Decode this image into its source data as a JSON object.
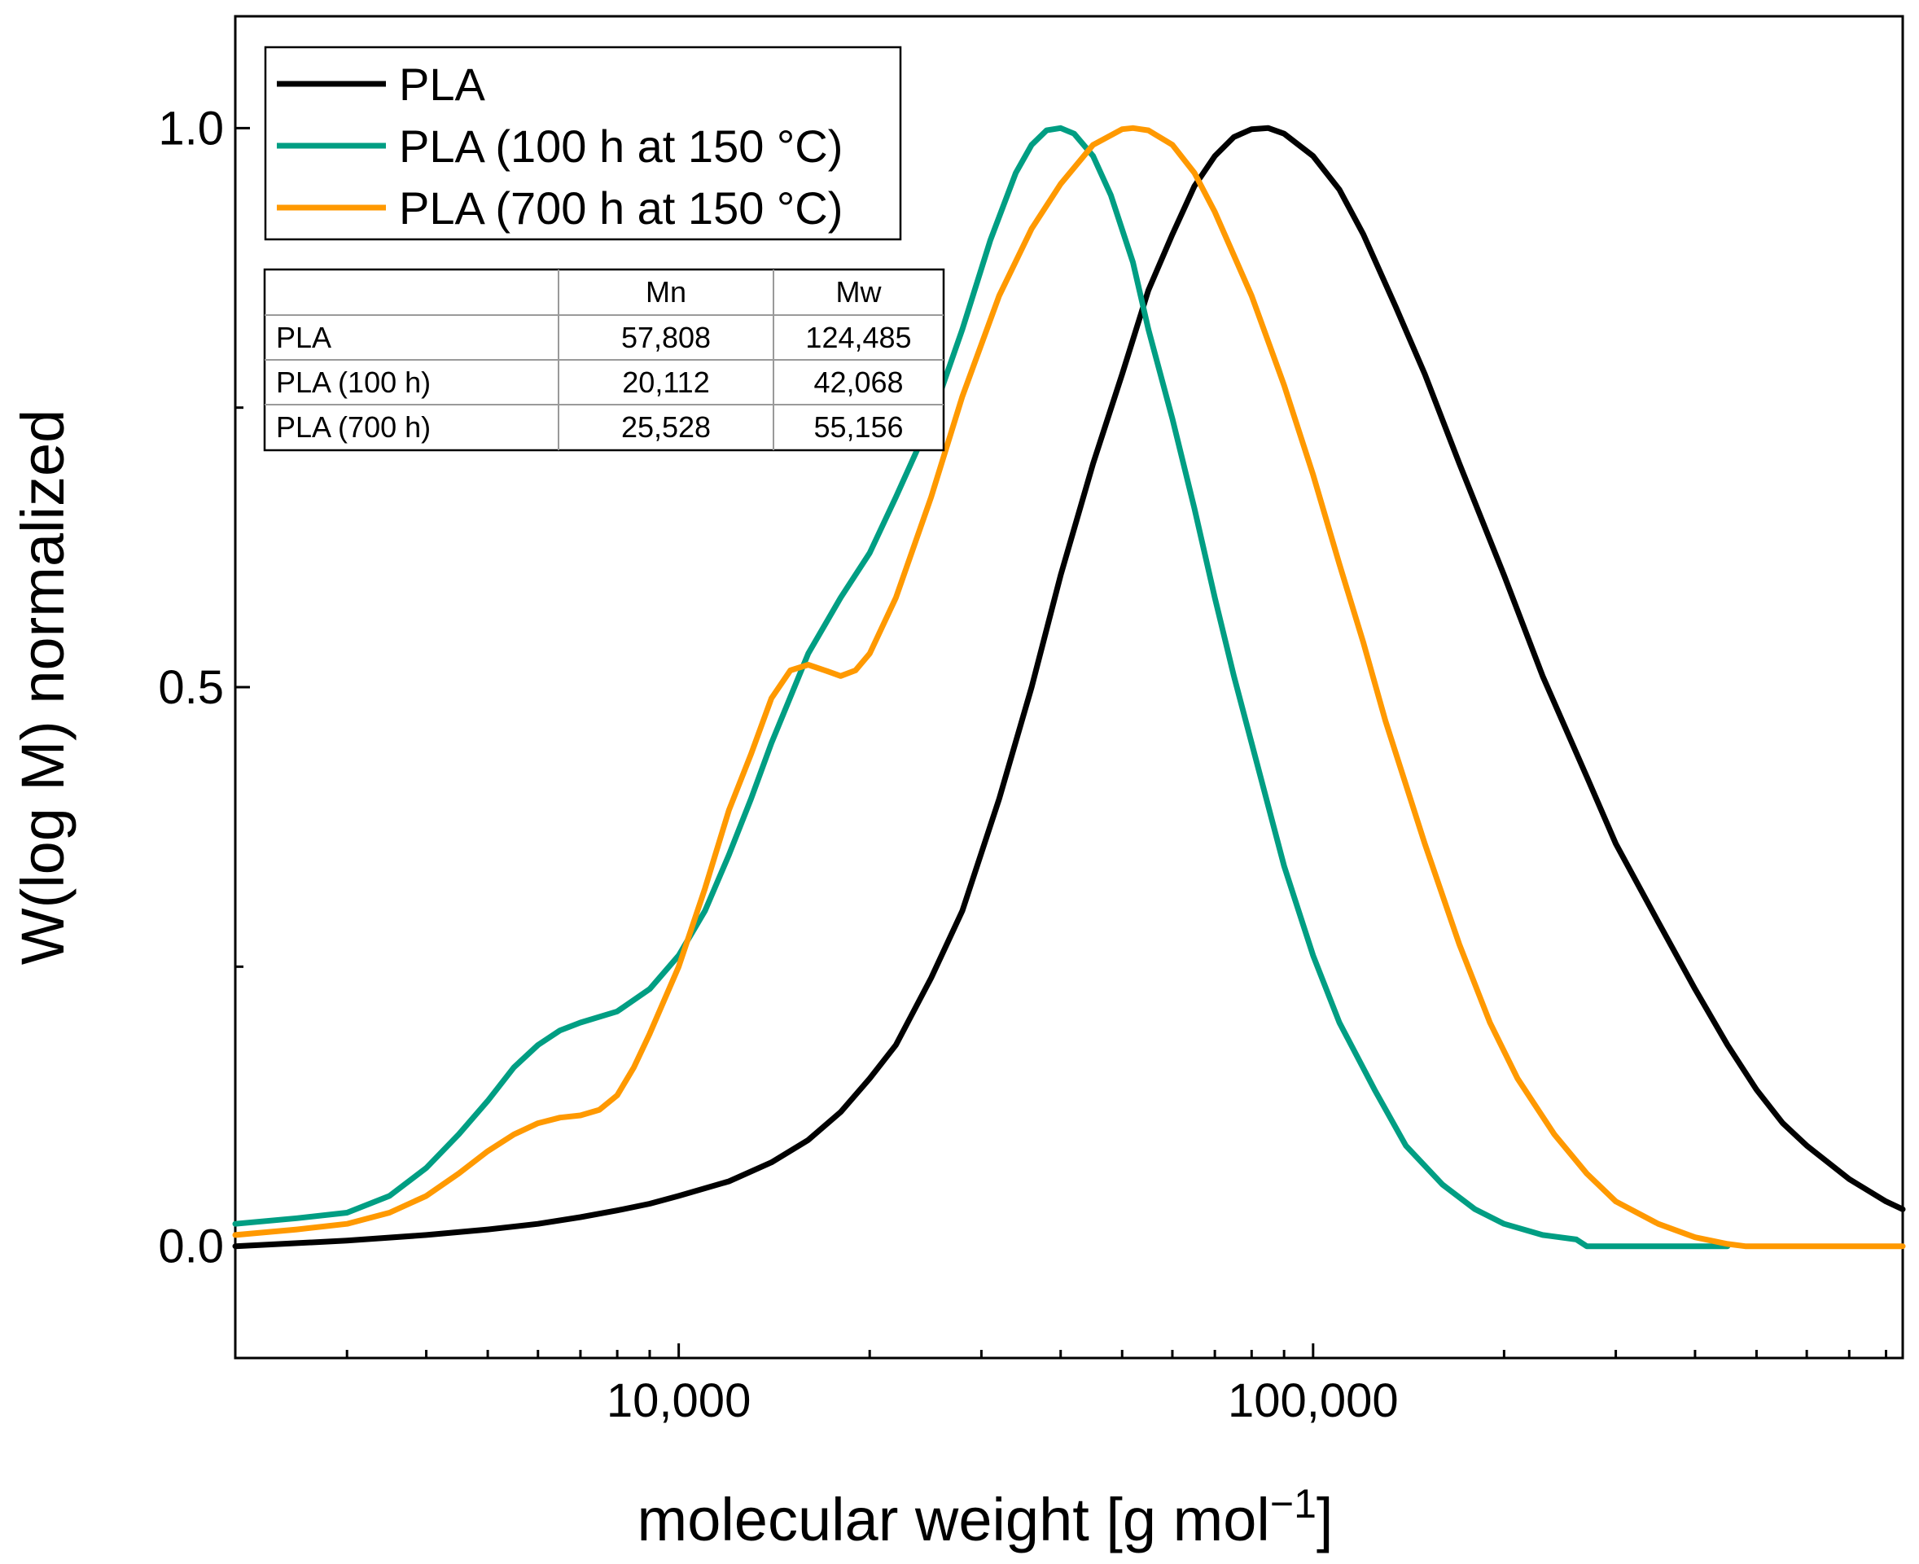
{
  "chart_data": {
    "type": "line",
    "title": "",
    "xlabel": "molecular weight [g mol",
    "xlabel_sup": "−1",
    "xlabel_close": "]",
    "ylabel": "W(log M) normalized",
    "xscale": "log",
    "xlim": [
      2000,
      850000
    ],
    "ylim": [
      -0.1,
      1.1
    ],
    "grid": false,
    "x_ticks": [
      {
        "value": 10000,
        "label": "10,000"
      },
      {
        "value": 100000,
        "label": "100,000"
      }
    ],
    "y_ticks": [
      {
        "value": 0.0,
        "label": "0.0"
      },
      {
        "value": 0.5,
        "label": "0.5"
      },
      {
        "value": 1.0,
        "label": "1.0"
      }
    ],
    "legend_position": "top-left",
    "series": [
      {
        "name": "PLA",
        "color": "#000000",
        "points": [
          [
            2000,
            0.0
          ],
          [
            3000,
            0.005
          ],
          [
            4000,
            0.01
          ],
          [
            5000,
            0.015
          ],
          [
            6000,
            0.02
          ],
          [
            7000,
            0.026
          ],
          [
            8000,
            0.032
          ],
          [
            9000,
            0.038
          ],
          [
            10000,
            0.045
          ],
          [
            12000,
            0.058
          ],
          [
            14000,
            0.075
          ],
          [
            16000,
            0.095
          ],
          [
            18000,
            0.12
          ],
          [
            20000,
            0.15
          ],
          [
            22000,
            0.18
          ],
          [
            25000,
            0.24
          ],
          [
            28000,
            0.3
          ],
          [
            32000,
            0.4
          ],
          [
            36000,
            0.5
          ],
          [
            40000,
            0.6
          ],
          [
            45000,
            0.7
          ],
          [
            50000,
            0.78
          ],
          [
            55000,
            0.855
          ],
          [
            60000,
            0.905
          ],
          [
            65000,
            0.948
          ],
          [
            70000,
            0.975
          ],
          [
            75000,
            0.992
          ],
          [
            80000,
            0.999
          ],
          [
            85000,
            1.0
          ],
          [
            90000,
            0.995
          ],
          [
            100000,
            0.975
          ],
          [
            110000,
            0.945
          ],
          [
            120000,
            0.905
          ],
          [
            135000,
            0.84
          ],
          [
            150000,
            0.78
          ],
          [
            170000,
            0.7
          ],
          [
            200000,
            0.6
          ],
          [
            230000,
            0.51
          ],
          [
            270000,
            0.42
          ],
          [
            300000,
            0.36
          ],
          [
            350000,
            0.29
          ],
          [
            400000,
            0.23
          ],
          [
            450000,
            0.18
          ],
          [
            500000,
            0.14
          ],
          [
            550000,
            0.11
          ],
          [
            600000,
            0.09
          ],
          [
            700000,
            0.06
          ],
          [
            800000,
            0.04
          ],
          [
            850000,
            0.033
          ]
        ]
      },
      {
        "name": "PLA (100 h at 150 °C)",
        "color": "#009E83",
        "points": [
          [
            2000,
            0.02
          ],
          [
            2500,
            0.025
          ],
          [
            3000,
            0.03
          ],
          [
            3500,
            0.045
          ],
          [
            4000,
            0.07
          ],
          [
            4500,
            0.1
          ],
          [
            5000,
            0.13
          ],
          [
            5500,
            0.16
          ],
          [
            6000,
            0.18
          ],
          [
            6500,
            0.193
          ],
          [
            7000,
            0.2
          ],
          [
            8000,
            0.21
          ],
          [
            9000,
            0.23
          ],
          [
            10000,
            0.26
          ],
          [
            11000,
            0.3
          ],
          [
            12000,
            0.35
          ],
          [
            13000,
            0.4
          ],
          [
            14000,
            0.45
          ],
          [
            16000,
            0.53
          ],
          [
            18000,
            0.58
          ],
          [
            20000,
            0.62
          ],
          [
            22000,
            0.67
          ],
          [
            25000,
            0.74
          ],
          [
            28000,
            0.82
          ],
          [
            31000,
            0.9
          ],
          [
            34000,
            0.96
          ],
          [
            36000,
            0.985
          ],
          [
            38000,
            0.998
          ],
          [
            40000,
            1.0
          ],
          [
            42000,
            0.995
          ],
          [
            45000,
            0.975
          ],
          [
            48000,
            0.94
          ],
          [
            52000,
            0.88
          ],
          [
            55000,
            0.82
          ],
          [
            60000,
            0.74
          ],
          [
            65000,
            0.66
          ],
          [
            70000,
            0.58
          ],
          [
            75000,
            0.51
          ],
          [
            80000,
            0.45
          ],
          [
            90000,
            0.34
          ],
          [
            100000,
            0.26
          ],
          [
            110000,
            0.2
          ],
          [
            125000,
            0.14
          ],
          [
            140000,
            0.09
          ],
          [
            160000,
            0.055
          ],
          [
            180000,
            0.033
          ],
          [
            200000,
            0.02
          ],
          [
            230000,
            0.01
          ],
          [
            260000,
            0.006
          ],
          [
            270000,
            0.0
          ],
          [
            450000,
            0.0
          ]
        ]
      },
      {
        "name": "PLA (700 h at 150 °C)",
        "color": "#FF9900",
        "points": [
          [
            2000,
            0.01
          ],
          [
            2500,
            0.015
          ],
          [
            3000,
            0.02
          ],
          [
            3500,
            0.03
          ],
          [
            4000,
            0.045
          ],
          [
            4500,
            0.065
          ],
          [
            5000,
            0.085
          ],
          [
            5500,
            0.1
          ],
          [
            6000,
            0.11
          ],
          [
            6500,
            0.115
          ],
          [
            7000,
            0.117
          ],
          [
            7500,
            0.122
          ],
          [
            8000,
            0.135
          ],
          [
            8500,
            0.16
          ],
          [
            9000,
            0.19
          ],
          [
            10000,
            0.25
          ],
          [
            11000,
            0.32
          ],
          [
            12000,
            0.39
          ],
          [
            13000,
            0.44
          ],
          [
            14000,
            0.49
          ],
          [
            15000,
            0.515
          ],
          [
            16000,
            0.52
          ],
          [
            17000,
            0.515
          ],
          [
            18000,
            0.51
          ],
          [
            19000,
            0.515
          ],
          [
            20000,
            0.53
          ],
          [
            22000,
            0.58
          ],
          [
            25000,
            0.67
          ],
          [
            28000,
            0.76
          ],
          [
            32000,
            0.85
          ],
          [
            36000,
            0.91
          ],
          [
            40000,
            0.95
          ],
          [
            45000,
            0.985
          ],
          [
            50000,
            0.999
          ],
          [
            52000,
            1.0
          ],
          [
            55000,
            0.998
          ],
          [
            60000,
            0.985
          ],
          [
            65000,
            0.96
          ],
          [
            70000,
            0.925
          ],
          [
            80000,
            0.85
          ],
          [
            90000,
            0.77
          ],
          [
            100000,
            0.69
          ],
          [
            110000,
            0.61
          ],
          [
            120000,
            0.54
          ],
          [
            130000,
            0.47
          ],
          [
            150000,
            0.36
          ],
          [
            170000,
            0.27
          ],
          [
            190000,
            0.2
          ],
          [
            210000,
            0.15
          ],
          [
            240000,
            0.1
          ],
          [
            270000,
            0.065
          ],
          [
            300000,
            0.04
          ],
          [
            350000,
            0.02
          ],
          [
            400000,
            0.008
          ],
          [
            450000,
            0.002
          ],
          [
            480000,
            0.0
          ],
          [
            850000,
            0.0
          ]
        ]
      }
    ],
    "table": {
      "headers": [
        "",
        "Mn",
        "Mw"
      ],
      "rows": [
        [
          "PLA",
          "57,808",
          "124,485"
        ],
        [
          "PLA (100 h)",
          "20,112",
          "42,068"
        ],
        [
          "PLA (700 h)",
          "25,528",
          "55,156"
        ]
      ]
    }
  }
}
